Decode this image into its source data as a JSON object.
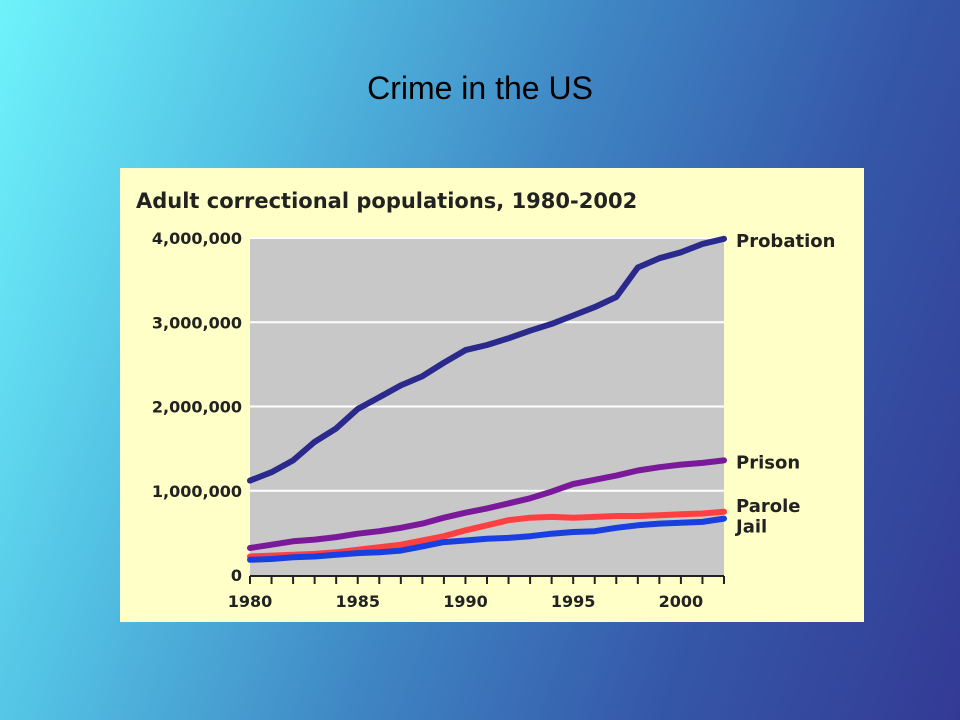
{
  "slide": {
    "title": "Crime in the US"
  },
  "colors": {
    "plot_bg": "#c8c8c8",
    "panel_bg": "#ffffc8",
    "gridline": "#ffffff"
  },
  "chart_data": {
    "type": "line",
    "title": "Adult correctional populations, 1980-2002",
    "xlabel": "",
    "ylabel": "",
    "x": [
      1980,
      1981,
      1982,
      1983,
      1984,
      1985,
      1986,
      1987,
      1988,
      1989,
      1990,
      1991,
      1992,
      1993,
      1994,
      1995,
      1996,
      1997,
      1998,
      1999,
      2000,
      2001,
      2002
    ],
    "xlim": [
      1980,
      2002
    ],
    "ylim": [
      0,
      4000000
    ],
    "grid": true,
    "x_tick_labels": [
      "1980",
      "1985",
      "1990",
      "1995",
      "2000"
    ],
    "y_tick_labels": [
      "4,000,000",
      "3,000,000",
      "2,000,000",
      "1,000,000",
      "0"
    ],
    "series": [
      {
        "name": "Probation",
        "color": "#2a2a8c",
        "values": [
          1120000,
          1220000,
          1360000,
          1580000,
          1740000,
          1970000,
          2110000,
          2250000,
          2360000,
          2520000,
          2670000,
          2730000,
          2810000,
          2900000,
          2980000,
          3080000,
          3180000,
          3300000,
          3650000,
          3760000,
          3830000,
          3930000,
          3990000
        ]
      },
      {
        "name": "Prison",
        "color": "#7a1a9a",
        "values": [
          320000,
          360000,
          400000,
          420000,
          450000,
          490000,
          520000,
          560000,
          610000,
          680000,
          740000,
          790000,
          850000,
          910000,
          990000,
          1080000,
          1130000,
          1180000,
          1240000,
          1280000,
          1310000,
          1330000,
          1360000
        ]
      },
      {
        "name": "Parole",
        "color": "#ff4040",
        "values": [
          220000,
          230000,
          240000,
          250000,
          270000,
          300000,
          330000,
          360000,
          410000,
          460000,
          530000,
          590000,
          650000,
          680000,
          690000,
          680000,
          690000,
          700000,
          700000,
          710000,
          720000,
          730000,
          750000
        ]
      },
      {
        "name": "Jail",
        "color": "#1a3fe0",
        "values": [
          180000,
          190000,
          210000,
          220000,
          240000,
          260000,
          270000,
          290000,
          340000,
          390000,
          410000,
          430000,
          440000,
          460000,
          490000,
          510000,
          520000,
          560000,
          590000,
          610000,
          620000,
          630000,
          670000
        ]
      }
    ]
  }
}
